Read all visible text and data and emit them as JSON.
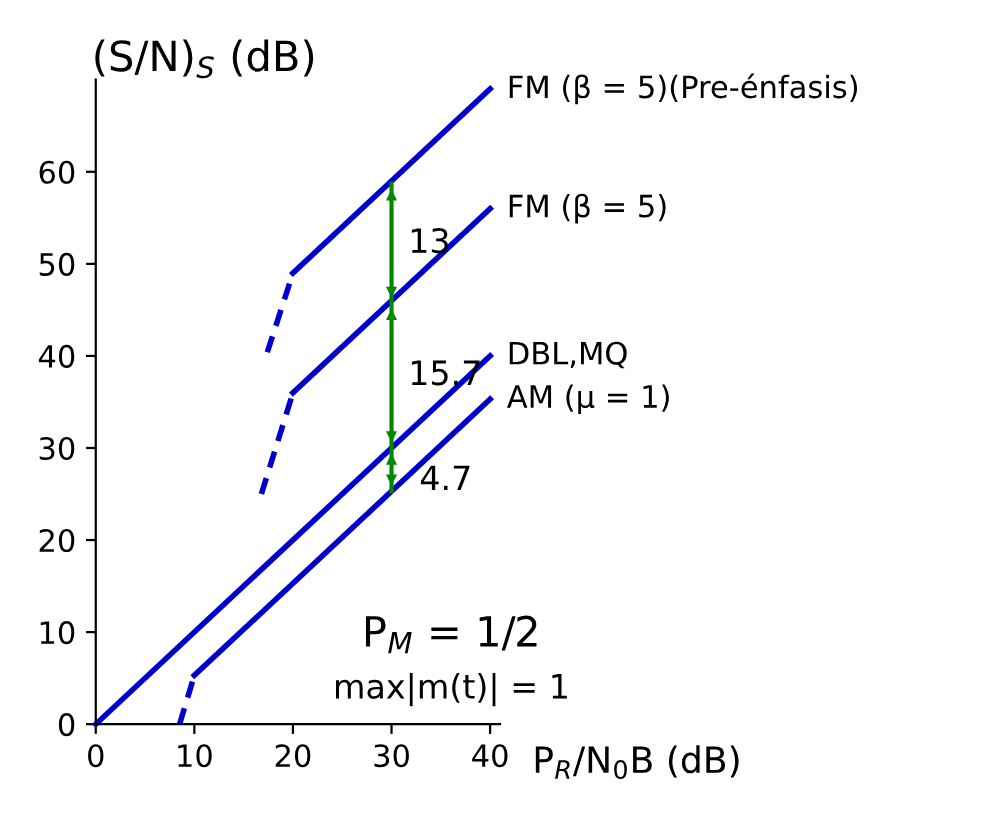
{
  "chart_data": {
    "type": "line",
    "xlabel": "P$_{R}$/N$_{0}$B (dB)",
    "ylabel": "(S/N)$_{S}$ (dB)",
    "xlim": [
      0,
      41
    ],
    "ylim": [
      0,
      70
    ],
    "xticks": [
      0,
      10,
      20,
      30,
      40
    ],
    "yticks": [
      0,
      10,
      20,
      30,
      40,
      50,
      60
    ],
    "grid": false,
    "series": [
      {
        "name": "FM (β = 5)(Pre-énfasis)",
        "color": "#0000cc",
        "x": [
          20,
          40
        ],
        "values": [
          49,
          69
        ]
      },
      {
        "color": "#0000cc",
        "line_style": "dashed",
        "x": [
          17.4,
          20
        ],
        "values": [
          40.4,
          49
        ]
      },
      {
        "name": "FM (β = 5)",
        "color": "#0000cc",
        "x": [
          20,
          40
        ],
        "values": [
          36,
          56
        ]
      },
      {
        "color": "#0000cc",
        "line_style": "dashed",
        "x": [
          16.8,
          20
        ],
        "values": [
          25,
          36
        ]
      },
      {
        "name": "DBL,MQ",
        "color": "#0000cc",
        "x": [
          0,
          40
        ],
        "values": [
          0,
          40
        ]
      },
      {
        "name": "AM (μ = 1)",
        "color": "#0000cc",
        "x": [
          10,
          40
        ],
        "values": [
          5.3,
          35.3
        ]
      },
      {
        "color": "#0000cc",
        "line_style": "dashed",
        "x": [
          8.5,
          10
        ],
        "values": [
          0,
          5.3
        ]
      },
      {
        "color": "#008800",
        "x": [
          30,
          30,
          30,
          30
        ],
        "values": [
          58.7,
          45.7,
          30,
          25.3
        ]
      }
    ],
    "annotations": [
      "13",
      "15.7",
      "4.7",
      "P$_{M}$ = 1/2",
      "max|m(t)| = 1"
    ]
  }
}
